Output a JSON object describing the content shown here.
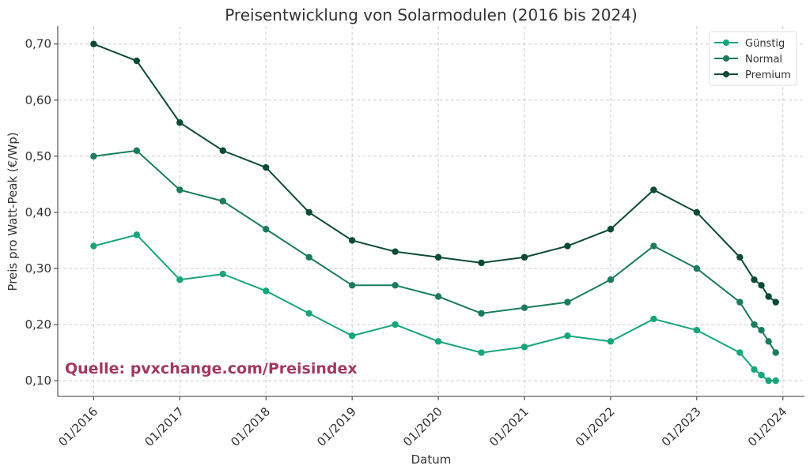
{
  "chart_data": {
    "type": "line",
    "title": "Preisentwicklung von Solarmodulen (2016 bis 2024)",
    "xlabel": "Datum",
    "ylabel": "Preis pro Watt-Peak (€/Wp)",
    "annotation": "Quelle: pvxchange.com/Preisindex",
    "annotation_color": "#a3385f",
    "x": [
      "2016-01",
      "2016-07",
      "2017-01",
      "2017-07",
      "2018-01",
      "2018-07",
      "2019-01",
      "2019-07",
      "2020-01",
      "2020-07",
      "2021-01",
      "2021-07",
      "2022-01",
      "2022-07",
      "2023-01",
      "2023-07",
      "2023-09",
      "2023-10",
      "2023-11",
      "2023-12"
    ],
    "x_ticks": [
      "01/2016",
      "01/2017",
      "01/2018",
      "01/2019",
      "01/2020",
      "01/2021",
      "01/2022",
      "01/2023",
      "01/2024"
    ],
    "y_ticks": [
      "0,10",
      "0,20",
      "0,30",
      "0,40",
      "0,50",
      "0,60",
      "0,70"
    ],
    "ylim": [
      0.072,
      0.732
    ],
    "xlim": [
      "2015-08",
      "2024-04"
    ],
    "grid": true,
    "legend_placement": "top-right",
    "series": [
      {
        "name": "Günstig",
        "color": "#17a57b",
        "values": [
          0.34,
          0.36,
          0.28,
          0.29,
          0.26,
          0.22,
          0.18,
          0.2,
          0.17,
          0.15,
          0.16,
          0.18,
          0.17,
          0.21,
          0.19,
          0.15,
          0.12,
          0.11,
          0.1,
          0.1
        ]
      },
      {
        "name": "Normal",
        "color": "#1b7b5d",
        "values": [
          0.5,
          0.51,
          0.44,
          0.42,
          0.37,
          0.32,
          0.27,
          0.27,
          0.25,
          0.22,
          0.23,
          0.24,
          0.28,
          0.34,
          0.3,
          0.24,
          0.2,
          0.19,
          0.17,
          0.15
        ]
      },
      {
        "name": "Premium",
        "color": "#0b4a36",
        "values": [
          0.7,
          0.67,
          0.56,
          0.51,
          0.48,
          0.4,
          0.35,
          0.33,
          0.32,
          0.31,
          0.32,
          0.34,
          0.37,
          0.44,
          0.4,
          0.32,
          0.28,
          0.27,
          0.25,
          0.24
        ]
      }
    ]
  }
}
